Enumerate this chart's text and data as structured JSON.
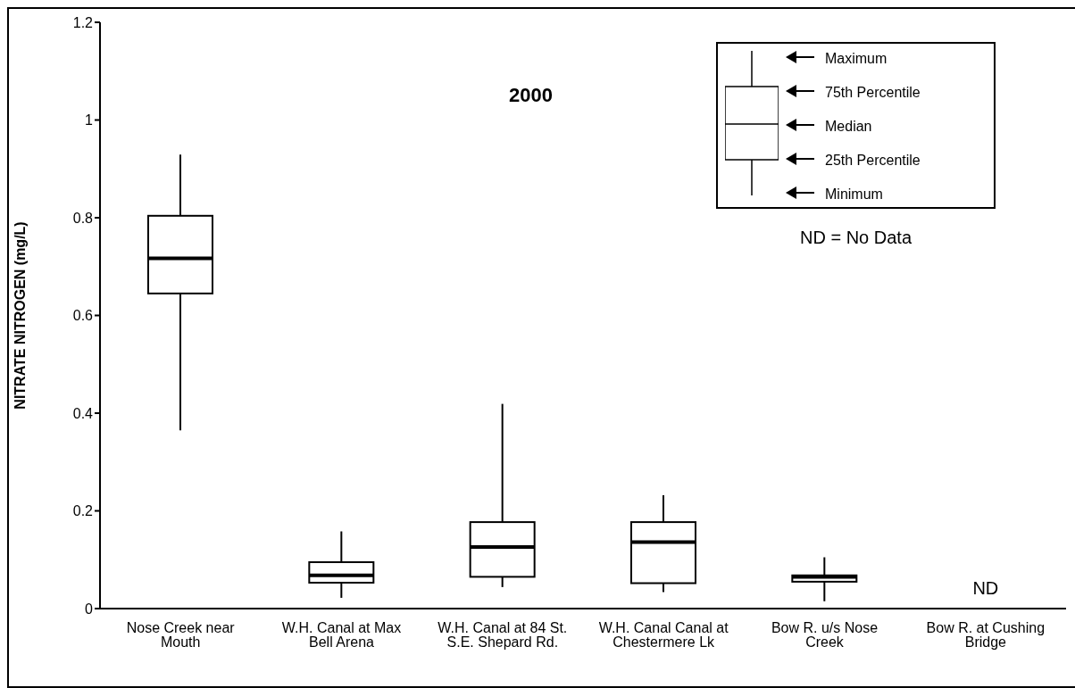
{
  "chart_data": {
    "type": "box",
    "title": "2000",
    "ylabel": "NITRATE NITROGEN (mg/L)",
    "categories": [
      "Nose Creek near Mouth",
      "W.H. Canal at Max Bell Arena",
      "W.H. Canal at 84 St. S.E. Shepard Rd.",
      "W.H. Canal Canal at Chestermere Lk",
      "Bow R. u/s Nose Creek",
      "Bow R. at Cushing Bridge"
    ],
    "boxes": [
      {
        "low": 0.365,
        "q1": 0.645,
        "median": 0.717,
        "q3": 0.804,
        "high": 0.929
      },
      {
        "low": 0.022,
        "q1": 0.053,
        "median": 0.068,
        "q3": 0.095,
        "high": 0.158
      },
      {
        "low": 0.044,
        "q1": 0.065,
        "median": 0.126,
        "q3": 0.177,
        "high": 0.419
      },
      {
        "low": 0.034,
        "q1": 0.052,
        "median": 0.136,
        "q3": 0.177,
        "high": 0.232
      },
      {
        "low": 0.015,
        "q1": 0.055,
        "median": 0.065,
        "q3": 0.068,
        "high": 0.105
      },
      null
    ],
    "color": "#000000",
    "ylim": [
      0,
      1.2
    ],
    "yticks": [
      0,
      0.2,
      0.4,
      0.6,
      0.8,
      1,
      1.2
    ],
    "annotations": [
      "Maximum",
      "75th Percentile",
      "Median",
      "25th Percentile",
      "Minimum",
      "ND = No Data",
      "ND"
    ]
  }
}
